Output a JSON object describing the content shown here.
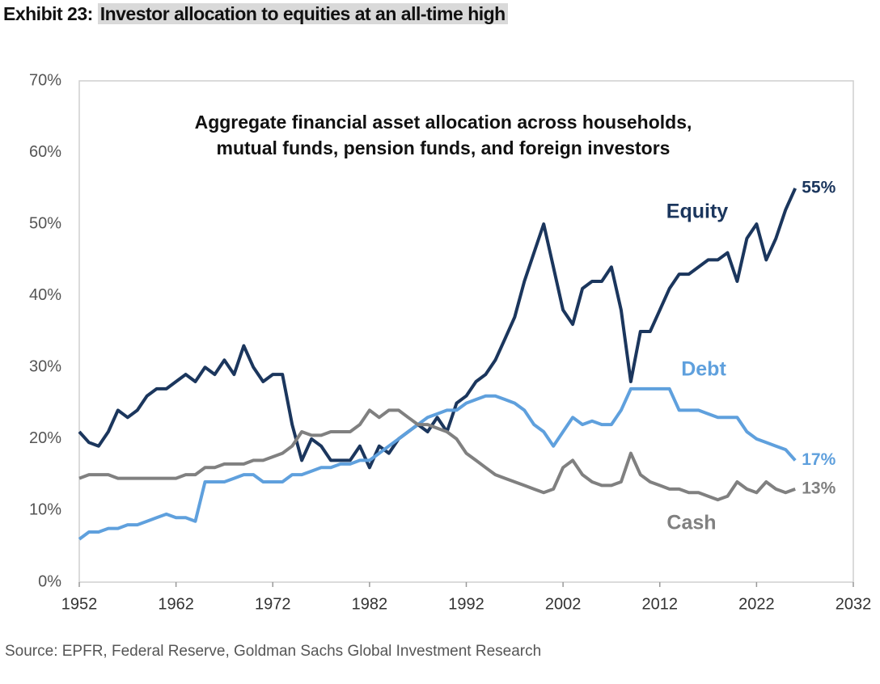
{
  "chart_data": {
    "type": "line",
    "title_prefix": "Exhibit 23:",
    "title": "Investor allocation to equities at an all-time high",
    "subtitle": [
      "Aggregate financial asset allocation across households,",
      "mutual funds, pension funds, and foreign investors"
    ],
    "source": "Source: EPFR, Federal Reserve, Goldman Sachs Global Investment Research",
    "x": [
      1952,
      1953,
      1954,
      1955,
      1956,
      1957,
      1958,
      1959,
      1960,
      1961,
      1962,
      1963,
      1964,
      1965,
      1966,
      1967,
      1968,
      1969,
      1970,
      1971,
      1972,
      1973,
      1974,
      1975,
      1976,
      1977,
      1978,
      1979,
      1980,
      1981,
      1982,
      1983,
      1984,
      1985,
      1986,
      1987,
      1988,
      1989,
      1990,
      1991,
      1992,
      1993,
      1994,
      1995,
      1996,
      1997,
      1998,
      1999,
      2000,
      2001,
      2002,
      2003,
      2004,
      2005,
      2006,
      2007,
      2008,
      2009,
      2010,
      2011,
      2012,
      2013,
      2014,
      2015,
      2016,
      2017,
      2018,
      2019,
      2020,
      2021,
      2022,
      2023,
      2024,
      2025,
      2026
    ],
    "series": [
      {
        "name": "Equity",
        "color": "#1b365d",
        "end_label": "55%",
        "values": [
          21,
          19.5,
          19,
          21,
          24,
          23,
          24,
          26,
          27,
          27,
          28,
          29,
          28,
          30,
          29,
          31,
          29,
          33,
          30,
          28,
          29,
          29,
          22,
          17,
          20,
          19,
          17,
          17,
          17,
          19,
          16,
          19,
          18,
          20,
          21,
          22,
          21,
          23,
          21,
          25,
          26,
          28,
          29,
          31,
          34,
          37,
          42,
          46,
          50,
          44,
          38,
          36,
          41,
          42,
          42,
          44,
          38,
          28,
          35,
          35,
          38,
          41,
          43,
          43,
          44,
          45,
          45,
          46,
          42,
          48,
          50,
          45,
          48,
          52,
          55
        ]
      },
      {
        "name": "Debt",
        "color": "#5fa0dd",
        "end_label": "17%",
        "values": [
          6,
          7,
          7,
          7.5,
          7.5,
          8,
          8,
          8.5,
          9,
          9.5,
          9,
          9,
          8.5,
          14,
          14,
          14,
          14.5,
          15,
          15,
          14,
          14,
          14,
          15,
          15,
          15.5,
          16,
          16,
          16.5,
          16.5,
          17,
          17,
          18,
          19,
          20,
          21,
          22,
          23,
          23.5,
          24,
          24,
          25,
          25.5,
          26,
          26,
          25.5,
          25,
          24,
          22,
          21,
          19,
          21,
          23,
          22,
          22.5,
          22,
          22,
          24,
          27,
          27,
          27,
          27,
          27,
          24,
          24,
          24,
          23.5,
          23,
          23,
          23,
          21,
          20,
          19.5,
          19,
          18.5,
          17
        ]
      },
      {
        "name": "Cash",
        "color": "#808080",
        "end_label": "13%",
        "values": [
          14.5,
          15,
          15,
          15,
          14.5,
          14.5,
          14.5,
          14.5,
          14.5,
          14.5,
          14.5,
          15,
          15,
          16,
          16,
          16.5,
          16.5,
          16.5,
          17,
          17,
          17.5,
          18,
          19,
          21,
          20.5,
          20.5,
          21,
          21,
          21,
          22,
          24,
          23,
          24,
          24,
          23,
          22,
          22,
          21.5,
          21,
          20,
          18,
          17,
          16,
          15,
          14.5,
          14,
          13.5,
          13,
          12.5,
          13,
          16,
          17,
          15,
          14,
          13.5,
          13.5,
          14,
          18,
          15,
          14,
          13.5,
          13,
          13,
          12.5,
          12.5,
          12,
          11.5,
          12,
          14,
          13,
          12.5,
          14,
          13,
          12.5,
          13
        ]
      }
    ],
    "xlim": [
      1952,
      2032
    ],
    "xticks": [
      1952,
      1962,
      1972,
      1982,
      1992,
      2002,
      2012,
      2022,
      2032
    ],
    "ylim": [
      0,
      70
    ],
    "yticks": [
      {
        "value": 0,
        "label": "0%"
      },
      {
        "value": 10,
        "label": "10%"
      },
      {
        "value": 20,
        "label": "20%"
      },
      {
        "value": 30,
        "label": "30%"
      },
      {
        "value": 40,
        "label": "40%"
      },
      {
        "value": 50,
        "label": "50%"
      },
      {
        "value": 60,
        "label": "60%"
      },
      {
        "value": 70,
        "label": "70%"
      }
    ],
    "grid": false
  }
}
